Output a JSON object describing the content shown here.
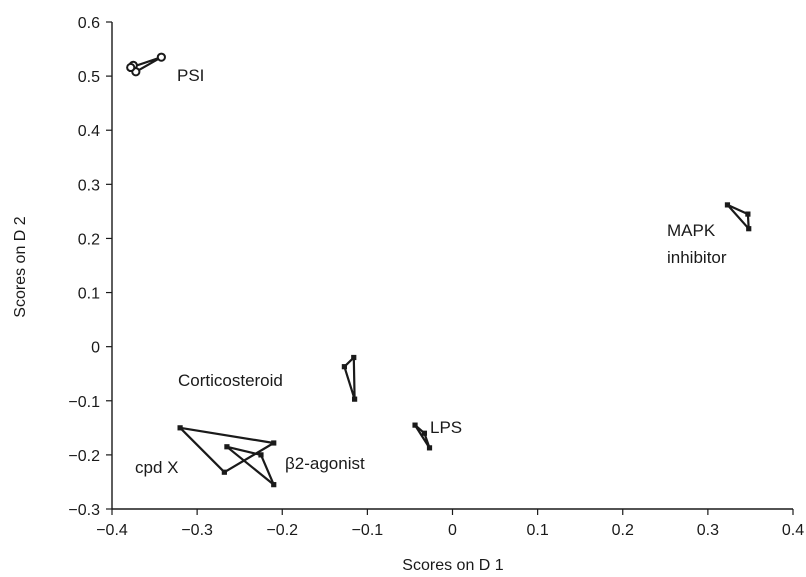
{
  "chart_data": {
    "type": "scatter",
    "title": "",
    "xlabel": "Scores on D 1",
    "ylabel": "Scores on D 2",
    "xlim": [
      -0.4,
      0.4
    ],
    "ylim": [
      -0.3,
      0.6
    ],
    "xticks": [
      -0.4,
      -0.3,
      -0.2,
      -0.1,
      0,
      0.1,
      0.2,
      0.3,
      0.4
    ],
    "yticks": [
      -0.3,
      -0.2,
      -0.1,
      0,
      0.1,
      0.2,
      0.3,
      0.4,
      0.5,
      0.6
    ],
    "xtick_labels": [
      "−0.4",
      "−0.3",
      "−0.2",
      "−0.1",
      "0",
      "0.1",
      "0.2",
      "0.3",
      "0.4"
    ],
    "ytick_labels": [
      "−0.3",
      "−0.2",
      "−0.1",
      "0",
      "0.1",
      "0.2",
      "0.3",
      "0.4",
      "0.5",
      "0.6"
    ],
    "grid": false,
    "series": [
      {
        "name": "PSI",
        "marker": "open-circle",
        "points": [
          [
            -0.375,
            0.52
          ],
          [
            -0.372,
            0.508
          ],
          [
            -0.342,
            0.535
          ],
          [
            -0.378,
            0.516
          ]
        ],
        "label_lines": [
          "PSI"
        ]
      },
      {
        "name": "MAPK inhibitor",
        "marker": "filled-square",
        "points": [
          [
            0.323,
            0.262
          ],
          [
            0.348,
            0.218
          ],
          [
            0.347,
            0.245
          ]
        ],
        "label_lines": [
          "MAPK",
          "inhibitor"
        ]
      },
      {
        "name": "Corticosteroid",
        "marker": "filled-square",
        "points": [
          [
            -0.127,
            -0.037
          ],
          [
            -0.115,
            -0.097
          ],
          [
            -0.116,
            -0.02
          ]
        ],
        "label_lines": [
          "Corticosteroid"
        ]
      },
      {
        "name": "LPS",
        "marker": "filled-square",
        "points": [
          [
            -0.044,
            -0.145
          ],
          [
            -0.027,
            -0.187
          ],
          [
            -0.033,
            -0.16
          ]
        ],
        "label_lines": [
          "LPS"
        ]
      },
      {
        "name": "cpd X",
        "marker": "filled-square",
        "points": [
          [
            -0.32,
            -0.15
          ],
          [
            -0.268,
            -0.232
          ],
          [
            -0.21,
            -0.178
          ]
        ],
        "label_lines": [
          "cpd X"
        ]
      },
      {
        "name": "β2-agonist",
        "marker": "filled-square",
        "points": [
          [
            -0.265,
            -0.185
          ],
          [
            -0.225,
            -0.2
          ],
          [
            -0.21,
            -0.255
          ]
        ],
        "label_lines": [
          "β2-agonist"
        ]
      }
    ]
  }
}
